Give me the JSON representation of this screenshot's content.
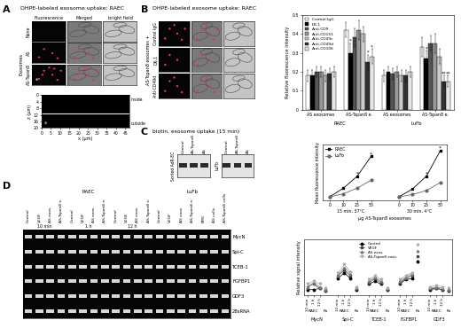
{
  "panels": {
    "A": {
      "letter": "A",
      "title": "DHPE-labeled exosome uptake: RAEC",
      "columns": [
        "Fluorescence",
        "Merged",
        "bright field"
      ],
      "rows": [
        "None",
        "AS",
        "AS-Tspan8"
      ],
      "row_group_label": "Exosomes",
      "marker": "*"
    },
    "B": {
      "letter": "B",
      "title": "DHPE-labeled exosome uptake: RAEC",
      "side_label": "AS-Tspan8 exosomes +",
      "rows": [
        "Control IgG",
        "D6.1",
        "Anti-CD49d"
      ]
    },
    "C": {
      "letter": "C",
      "title": "biotin. exosome uptake (15 min)",
      "gels": [
        {
          "label": "Sorted AdR-EC",
          "lanes": [
            "Control",
            "AS-Tspan8",
            "AS"
          ]
        },
        {
          "label": "LuFb",
          "lanes": [
            "Control",
            "AS-Tspan8",
            "AS"
          ]
        }
      ]
    },
    "D": {
      "letter": "D",
      "rows": [
        "MycN",
        "Spi-C",
        "TCEB-1",
        "FGFBP1",
        "GDF3",
        "28sRNA"
      ],
      "lane_groups": [
        {
          "header": "RAEC",
          "subgroups": [
            {
              "label": "10 min",
              "lanes": [
                "Control",
                "VEGF",
                "AS exos.",
                "AS-Tspan8 e."
              ]
            },
            {
              "label": "1 h",
              "lanes": [
                "Control",
                "VEGF",
                "AS exos.",
                "AS-Tspan8 e."
              ]
            },
            {
              "label": "12 h",
              "lanes": [
                "Control",
                "VEGF",
                "AS exos.",
                "AS-Tspan8 e."
              ]
            }
          ]
        },
        {
          "header": "LuFb",
          "subgroups": [
            {
              "lanes": [
                "Control",
                "VEGF",
                "AS exos",
                "AS-Tspan8 e."
              ]
            },
            {
              "lanes": [
                "BMC",
                "AS cells",
                "AS-Tspan8 cells"
              ]
            }
          ]
        }
      ]
    }
  },
  "chart_data": [
    {
      "type": "bar",
      "ylabel": "Relative fluorescence intensity",
      "categories": [
        "AS exosomes",
        "AS-Tspan8 e.",
        "AS exosomes",
        "AS-Tspan8 e."
      ],
      "groups": [
        "RAEC",
        "LuFb"
      ],
      "ylim": [
        0,
        0.5
      ],
      "yticks": [
        0,
        0.1,
        0.2,
        0.3,
        0.4,
        0.5
      ],
      "legend": "upper left",
      "series": [
        {
          "name": "Control IgG",
          "color": "#ffffff",
          "values": [
            0.18,
            0.42,
            0.18,
            0.33
          ],
          "errors": [
            0.03,
            0.04,
            0.03,
            0.05
          ],
          "significance": [
            null,
            null,
            null,
            null
          ]
        },
        {
          "name": "D6.1",
          "color": "#000000",
          "values": [
            0.18,
            0.3,
            0.2,
            0.27
          ],
          "errors": [
            0.03,
            0.05,
            0.03,
            0.04
          ],
          "significance": [
            null,
            "*",
            null,
            "*"
          ]
        },
        {
          "name": "Anti-CD9",
          "color": "#555555",
          "values": [
            0.2,
            0.38,
            0.19,
            0.35
          ],
          "errors": [
            0.03,
            0.05,
            0.03,
            0.04
          ],
          "significance": [
            null,
            null,
            null,
            null
          ]
        },
        {
          "name": "Anti-CD151",
          "color": "#999999",
          "values": [
            0.2,
            0.42,
            0.2,
            0.35
          ],
          "errors": [
            0.03,
            0.05,
            0.03,
            0.05
          ],
          "significance": [
            null,
            null,
            null,
            null
          ]
        },
        {
          "name": "Anti-CD49c",
          "color": "#cccccc",
          "values": [
            0.18,
            0.4,
            0.18,
            0.28
          ],
          "errors": [
            0.03,
            0.04,
            0.03,
            0.04
          ],
          "significance": [
            null,
            null,
            null,
            null
          ]
        },
        {
          "name": "Anti-CD49d",
          "color": "#333333",
          "values": [
            0.19,
            0.25,
            0.18,
            0.15
          ],
          "errors": [
            0.03,
            0.04,
            0.03,
            0.03
          ],
          "significance": [
            null,
            "*",
            null,
            "**"
          ]
        },
        {
          "name": "Anti-CD106",
          "color": "#e6e6e6",
          "values": [
            0.2,
            0.28,
            0.2,
            0.15
          ],
          "errors": [
            0.03,
            0.04,
            0.03,
            0.03
          ],
          "significance": [
            null,
            "*",
            null,
            "**"
          ]
        }
      ]
    },
    {
      "type": "line",
      "ylabel": "Mean fluorescence intensity",
      "xlabel": "μg AS-Tspan8 exosomes",
      "groups": [
        {
          "label": "15 min, 37°C",
          "categories": [
            "0",
            "10",
            "25",
            "50"
          ]
        },
        {
          "label": "30 min, 4°C",
          "categories": [
            "0",
            "10",
            "25",
            "50"
          ]
        }
      ],
      "ylim": [
        0,
        0.7
      ],
      "yticks": [],
      "tick_labels": "x",
      "legend": "upper left",
      "series": [
        {
          "name": "RAEC",
          "color": "#000000",
          "marker": "square",
          "line_style": "solid",
          "values": [
            [
              0.04,
              0.15,
              0.3,
              0.55
            ],
            [
              0.04,
              0.14,
              0.3,
              0.62
            ]
          ],
          "significance": [
            [
              null,
              null,
              "*",
              "*"
            ],
            [
              null,
              null,
              "*",
              "*"
            ]
          ]
        },
        {
          "name": "LuFb",
          "color": "#666666",
          "marker": "circle",
          "line_style": "solid",
          "values": [
            [
              0.04,
              0.08,
              0.15,
              0.25
            ],
            [
              0.04,
              0.07,
              0.12,
              0.22
            ]
          ]
        }
      ]
    },
    {
      "type": "line",
      "ylabel": "Relative signal intensity",
      "groups": [
        "MycN",
        "Spi-C",
        "TCEB-1",
        "FGFBP1",
        "GDF3"
      ],
      "category_groups": [
        {
          "label": "RAEC",
          "categories": [
            "10 min",
            "1 h",
            "12 h"
          ]
        },
        {
          "label": "Fb",
          "categories": [
            null
          ]
        }
      ],
      "ylim": [
        0,
        1
      ],
      "yticks": [],
      "tick_labels": "x",
      "legend": "upper center",
      "series": [
        {
          "name": "Control",
          "color": "#000000",
          "marker": "circle",
          "line_style": "solid",
          "values": [
            [
              0.1,
              0.1,
              0.12,
              0.08
            ],
            [
              0.3,
              0.4,
              0.3,
              0.1
            ],
            [
              0.2,
              0.25,
              0.2,
              0.1
            ],
            [
              0.2,
              0.28,
              0.3,
              0.6
            ],
            [
              0.1,
              0.12,
              0.1,
              0.08
            ]
          ]
        },
        {
          "name": "VEGF",
          "color": "#444444",
          "marker": "square",
          "line_style": "solid",
          "values": [
            [
              0.15,
              0.2,
              0.12,
              0.1
            ],
            [
              0.35,
              0.45,
              0.35,
              0.12
            ],
            [
              0.22,
              0.3,
              0.22,
              0.1
            ],
            [
              0.22,
              0.3,
              0.35,
              0.7
            ],
            [
              0.12,
              0.12,
              0.1,
              0.1
            ]
          ]
        },
        {
          "name": "AS exos.",
          "color": "#777777",
          "marker": "triangle",
          "line_style": "solid",
          "values": [
            [
              0.15,
              0.22,
              0.15,
              0.1
            ],
            [
              0.35,
              0.5,
              0.38,
              0.12
            ],
            [
              0.25,
              0.32,
              0.25,
              0.12
            ],
            [
              0.25,
              0.32,
              0.38,
              0.8
            ],
            [
              0.12,
              0.15,
              0.12,
              0.1
            ]
          ]
        },
        {
          "name": "AS-Tspan8 exos.",
          "color": "#aaaaaa",
          "marker": "triangle_down",
          "line_style": "solid",
          "values": [
            [
              0.2,
              0.25,
              0.2,
              0.12
            ],
            [
              0.4,
              0.55,
              0.42,
              0.14
            ],
            [
              0.28,
              0.35,
              0.28,
              0.12
            ],
            [
              0.28,
              0.35,
              0.4,
              0.9
            ],
            [
              0.15,
              0.18,
              0.15,
              0.12
            ]
          ]
        }
      ]
    },
    {
      "type": "image",
      "xlabel": "x (μm)",
      "ylabel": "z (μm)",
      "xlim": [
        0,
        47
      ],
      "ylim": [
        20,
        0
      ],
      "xticks": [
        0,
        5,
        10,
        15,
        20,
        25,
        30,
        35,
        40,
        45
      ],
      "yticks": [
        0,
        4,
        8,
        12,
        16,
        20
      ],
      "line_z": 11,
      "side_labels": [
        "inside",
        "outside"
      ],
      "annotation": "*"
    }
  ]
}
